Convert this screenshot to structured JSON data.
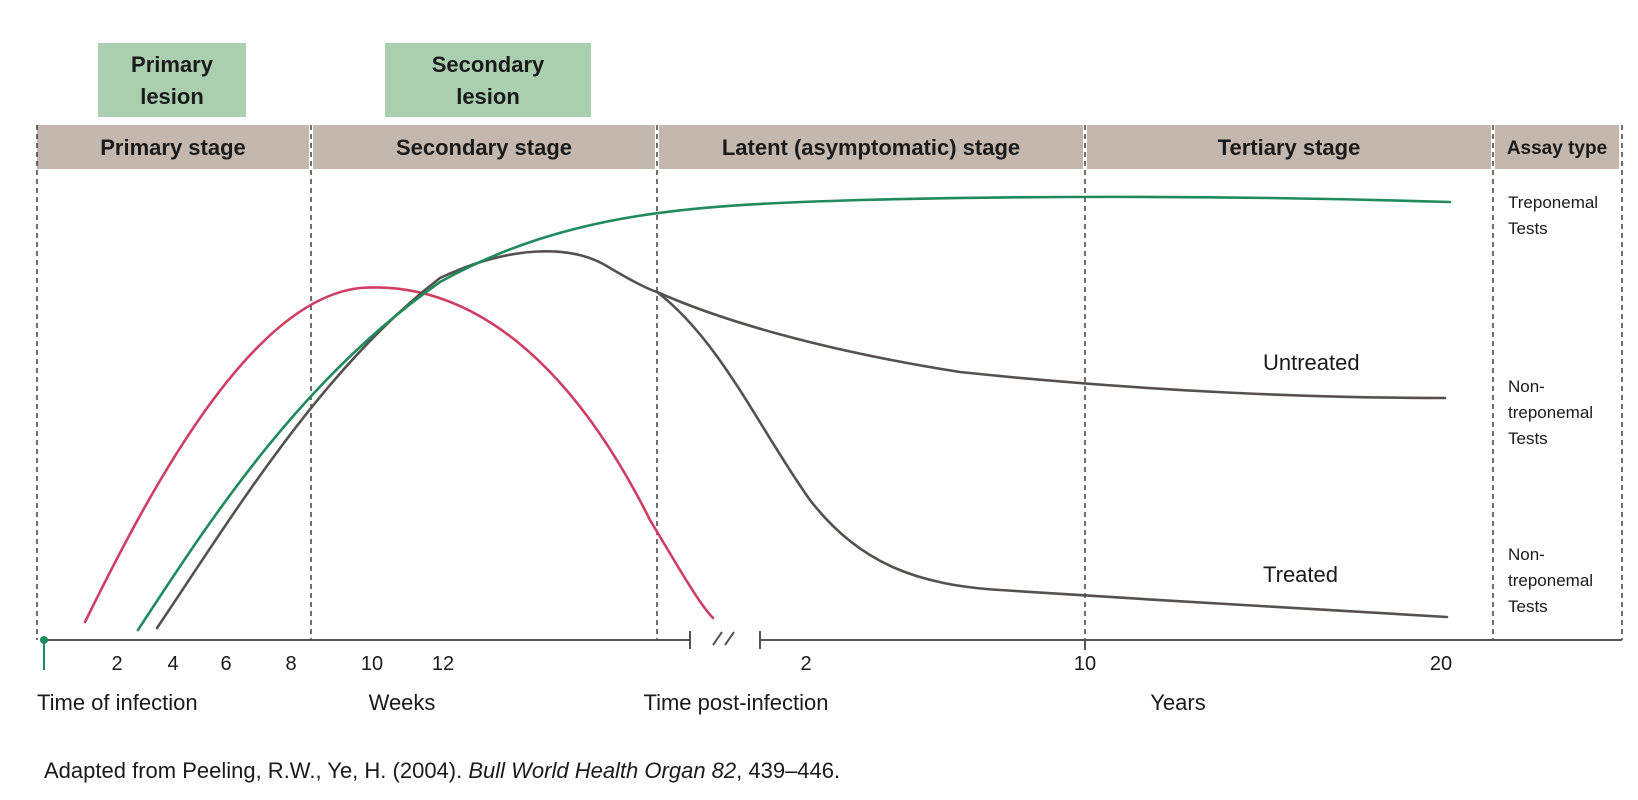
{
  "lesions": [
    {
      "lines": [
        "Primary",
        "lesion"
      ]
    },
    {
      "lines": [
        "Secondary",
        "lesion"
      ]
    }
  ],
  "stages": [
    {
      "label": "Primary stage"
    },
    {
      "label": "Secondary stage"
    },
    {
      "label": "Latent (asymptomatic) stage"
    },
    {
      "label": "Tertiary stage"
    }
  ],
  "assay_header": "Assay type",
  "assay_labels": [
    {
      "lines": [
        "Treponemal",
        "Tests"
      ]
    },
    {
      "lines": [
        "Non-",
        "treponemal",
        "Tests"
      ]
    },
    {
      "lines": [
        "Non-",
        "treponemal",
        "Tests"
      ]
    }
  ],
  "curve_labels": {
    "untreated": "Untreated",
    "treated": "Treated"
  },
  "week_ticks": [
    "2",
    "4",
    "6",
    "8",
    "10",
    "12"
  ],
  "year_ticks": [
    "2",
    "10",
    "20"
  ],
  "axis_labels": {
    "infection": "Time of infection",
    "weeks": "Weeks",
    "post_infection": "Time post-infection",
    "years": "Years"
  },
  "citation": {
    "plain": "Adapted from Peeling, R.W., Ye, H. (2004). ",
    "italic": "Bull World Health Organ 82",
    "rest": ", 439–446."
  },
  "colors": {
    "lesion_box": "#a9cfae",
    "stage_band": "#c4b8ae",
    "treponemal_curve": "#1f8a5c",
    "nontreponemal_curve": "#55514f",
    "lesion_curve": "#cf3e63",
    "axis": "#555555"
  }
}
